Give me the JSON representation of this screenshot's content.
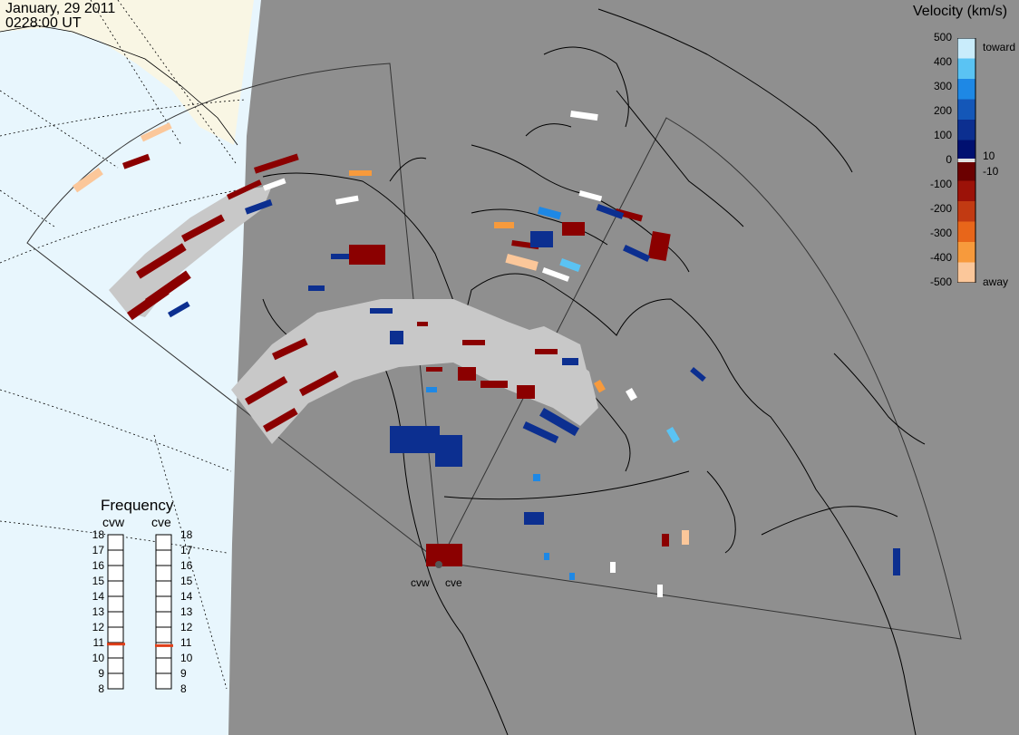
{
  "header": {
    "date": "January, 29 2011",
    "time": "0228:00 UT"
  },
  "velocity_legend": {
    "title": "Velocity (km/s)",
    "ticks": [
      "500",
      "400",
      "300",
      "200",
      "100",
      "0",
      "-100",
      "-200",
      "-300",
      "-400",
      "-500"
    ],
    "toward_label": "toward",
    "away_label": "away",
    "threshold_pos": "10",
    "threshold_neg": "-10",
    "colors_toward": [
      "#c9ecfb",
      "#5ac3f3",
      "#1e88e5",
      "#1457b8",
      "#0c2f90",
      "#001070"
    ],
    "colors_away": [
      "#6b0000",
      "#9c1208",
      "#c23a12",
      "#e8661a",
      "#f79a3c",
      "#fbc79a"
    ]
  },
  "frequency": {
    "title": "Frequency",
    "radars": [
      "cvw",
      "cve"
    ],
    "ticks": [
      "18",
      "17",
      "16",
      "15",
      "14",
      "13",
      "12",
      "11",
      "10",
      "9",
      "8"
    ],
    "cvw_mhz": 10.9,
    "cve_mhz": 10.8
  },
  "map": {
    "radar_labels": [
      "cvw",
      "cve"
    ],
    "colors": {
      "night_gray": "#8f8f8f",
      "ocean": "#e8f6fd",
      "land_sun": "#f9f6e4",
      "gs_gray": "#c8c8c8"
    }
  }
}
